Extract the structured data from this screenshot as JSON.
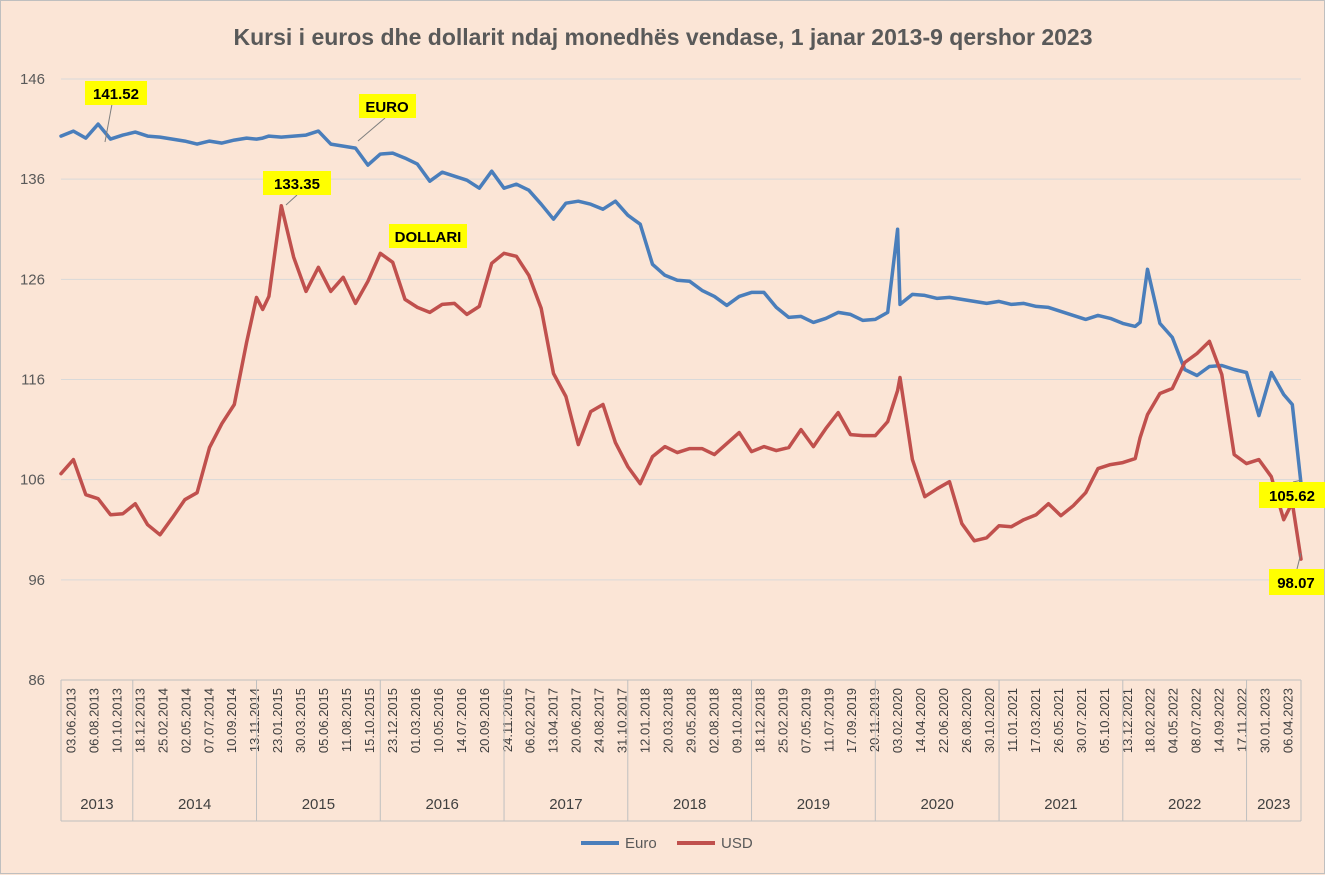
{
  "chart_data": {
    "type": "line",
    "title": "Kursi i euros dhe dollarit ndaj monedhës vendase, 1 janar 2013-9 qershor 2023",
    "ylim": [
      86,
      146
    ],
    "yticks": [
      "86",
      "96",
      "106",
      "116",
      "126",
      "136",
      "146"
    ],
    "grid": "horizontal",
    "legend_position": "bottom",
    "x_tick_labels": [
      "03.06.2013",
      "06.08.2013",
      "10.10.2013",
      "18.12.2013",
      "25.02.2014",
      "02.05.2014",
      "07.07.2014",
      "10.09.2014",
      "13.11.2014",
      "23.01.2015",
      "30.03.2015",
      "05.06.2015",
      "11.08.2015",
      "15.10.2015",
      "23.12.2015",
      "01.03.2016",
      "10.05.2016",
      "14.07.2016",
      "20.09.2016",
      "24.11.2016",
      "06.02.2017",
      "13.04.2017",
      "20.06.2017",
      "24.08.2017",
      "31.10.2017",
      "12.01.2018",
      "20.03.2018",
      "29.05.2018",
      "02.08.2018",
      "09.10.2018",
      "18.12.2018",
      "25.02.2019",
      "07.05.2019",
      "11.07.2019",
      "17.09.2019",
      "20.11.2019",
      "03.02.2020",
      "14.04.2020",
      "22.06.2020",
      "26.08.2020",
      "30.10.2020",
      "11.01.2021",
      "17.03.2021",
      "26.05.2021",
      "30.07.2021",
      "05.10.2021",
      "13.12.2021",
      "18.02.2022",
      "04.05.2022",
      "08.07.2022",
      "14.09.2022",
      "17.11.2022",
      "30.01.2023",
      "06.04.2023"
    ],
    "years": [
      {
        "label": "2013",
        "start": 2013.42,
        "end": 2014.0
      },
      {
        "label": "2014",
        "start": 2014.0,
        "end": 2015.0
      },
      {
        "label": "2015",
        "start": 2015.0,
        "end": 2016.0
      },
      {
        "label": "2016",
        "start": 2016.0,
        "end": 2017.0
      },
      {
        "label": "2017",
        "start": 2017.0,
        "end": 2018.0
      },
      {
        "label": "2018",
        "start": 2018.0,
        "end": 2019.0
      },
      {
        "label": "2019",
        "start": 2019.0,
        "end": 2020.0
      },
      {
        "label": "2020",
        "start": 2020.0,
        "end": 2021.0
      },
      {
        "label": "2021",
        "start": 2021.0,
        "end": 2022.0
      },
      {
        "label": "2022",
        "start": 2022.0,
        "end": 2023.0
      },
      {
        "label": "2023",
        "start": 2023.0,
        "end": 2023.44
      }
    ],
    "x": [
      2013.42,
      2013.52,
      2013.62,
      2013.72,
      2013.82,
      2013.92,
      2014.02,
      2014.12,
      2014.22,
      2014.32,
      2014.42,
      2014.52,
      2014.62,
      2014.72,
      2014.82,
      2014.92,
      2015.0,
      2015.05,
      2015.1,
      2015.2,
      2015.3,
      2015.4,
      2015.5,
      2015.6,
      2015.7,
      2015.8,
      2015.9,
      2016.0,
      2016.1,
      2016.2,
      2016.3,
      2016.4,
      2016.5,
      2016.6,
      2016.7,
      2016.8,
      2016.9,
      2017.0,
      2017.1,
      2017.2,
      2017.3,
      2017.4,
      2017.5,
      2017.6,
      2017.7,
      2017.8,
      2017.9,
      2018.0,
      2018.1,
      2018.2,
      2018.3,
      2018.4,
      2018.5,
      2018.6,
      2018.7,
      2018.8,
      2018.9,
      2019.0,
      2019.1,
      2019.2,
      2019.3,
      2019.4,
      2019.5,
      2019.6,
      2019.7,
      2019.8,
      2019.9,
      2020.0,
      2020.1,
      2020.18,
      2020.2,
      2020.3,
      2020.4,
      2020.5,
      2020.6,
      2020.7,
      2020.8,
      2020.9,
      2021.0,
      2021.1,
      2021.2,
      2021.3,
      2021.4,
      2021.5,
      2021.6,
      2021.7,
      2021.8,
      2021.9,
      2022.0,
      2022.1,
      2022.14,
      2022.2,
      2022.3,
      2022.4,
      2022.5,
      2022.6,
      2022.7,
      2022.8,
      2022.9,
      2023.0,
      2023.1,
      2023.2,
      2023.3,
      2023.37,
      2023.44
    ],
    "series": [
      {
        "name": "Euro",
        "color": "#4a7ebb",
        "values": [
          140.3,
          140.8,
          140.1,
          141.5,
          140.0,
          140.4,
          140.7,
          140.3,
          140.2,
          140.0,
          139.8,
          139.5,
          139.8,
          139.6,
          139.9,
          140.1,
          140.0,
          140.1,
          140.3,
          140.2,
          140.3,
          140.4,
          140.8,
          139.5,
          139.3,
          139.1,
          137.4,
          138.5,
          138.6,
          138.1,
          137.5,
          135.8,
          136.7,
          136.3,
          135.9,
          135.1,
          136.8,
          135.1,
          135.5,
          134.9,
          133.5,
          132.0,
          133.6,
          133.8,
          133.5,
          133.0,
          133.8,
          132.4,
          131.5,
          127.5,
          126.4,
          125.9,
          125.8,
          124.9,
          124.3,
          123.4,
          124.3,
          124.7,
          124.7,
          123.2,
          122.2,
          122.3,
          121.7,
          122.1,
          122.7,
          122.5,
          121.9,
          122.0,
          122.7,
          131.0,
          123.5,
          124.5,
          124.4,
          124.1,
          124.2,
          124.0,
          123.8,
          123.6,
          123.8,
          123.5,
          123.6,
          123.3,
          123.2,
          122.8,
          122.4,
          122.0,
          122.4,
          122.1,
          121.6,
          121.3,
          121.7,
          127.0,
          121.6,
          120.2,
          117.0,
          116.4,
          117.3,
          117.4,
          117.0,
          116.7,
          112.4,
          116.7,
          114.5,
          113.5,
          105.62
        ]
      },
      {
        "name": "USD",
        "color": "#c0504d",
        "values": [
          106.6,
          108.0,
          104.5,
          104.1,
          102.5,
          102.6,
          103.6,
          101.5,
          100.5,
          102.2,
          104.0,
          104.7,
          109.2,
          111.6,
          113.5,
          119.7,
          124.2,
          123.0,
          124.3,
          133.35,
          128.2,
          124.8,
          127.2,
          124.8,
          126.2,
          123.6,
          125.8,
          128.6,
          127.7,
          124.0,
          123.2,
          122.7,
          123.5,
          123.6,
          122.5,
          123.3,
          127.6,
          128.6,
          128.3,
          126.4,
          123.1,
          116.6,
          114.3,
          109.5,
          112.8,
          113.5,
          109.7,
          107.3,
          105.6,
          108.3,
          109.3,
          108.7,
          109.1,
          109.1,
          108.5,
          109.6,
          110.7,
          108.8,
          109.3,
          108.9,
          109.2,
          111.0,
          109.3,
          111.1,
          112.7,
          110.5,
          110.4,
          110.4,
          111.8,
          114.9,
          116.2,
          108.0,
          104.3,
          105.1,
          105.8,
          101.6,
          99.9,
          100.2,
          101.4,
          101.3,
          102.0,
          102.5,
          103.6,
          102.4,
          103.4,
          104.7,
          107.1,
          107.5,
          107.7,
          108.1,
          110.2,
          112.5,
          114.6,
          115.1,
          117.7,
          118.6,
          119.8,
          116.5,
          108.5,
          107.6,
          108.0,
          106.3,
          102.0,
          103.7,
          98.07
        ]
      }
    ],
    "annotations": {
      "euro_max": "141.52",
      "euro_label": "EURO",
      "usd_max": "133.35",
      "usd_label": "DOLLARI",
      "euro_last": "105.62",
      "usd_last": "98.07"
    },
    "legend": [
      "Euro",
      "USD"
    ]
  }
}
